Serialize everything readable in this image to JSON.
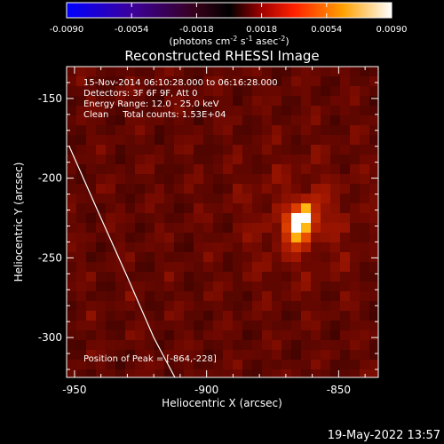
{
  "colorbar": {
    "ticks": [
      "-0.0090",
      "-0.0054",
      "-0.0018",
      "0.0018",
      "0.0054",
      "0.0090"
    ],
    "range": [
      -0.009,
      0.009
    ],
    "units_prefix": "(photons cm",
    "units_exp1": "-2",
    "units_mid": " s",
    "units_exp2": "-1",
    "units_mid2": " asec",
    "units_exp3": "-2",
    "units_suffix": ")"
  },
  "chart_data": {
    "type": "heatmap",
    "title": "Reconstructed RHESSI Image",
    "xlabel": "Heliocentric X (arcsec)",
    "ylabel": "Heliocentric Y (arcsec)",
    "xlim": [
      -953,
      -835
    ],
    "ylim": [
      -325,
      -130
    ],
    "xticks": [
      -950,
      -900,
      -850,
      -800
    ],
    "yticks": [
      -150,
      -200,
      -250,
      -300
    ],
    "peak": {
      "x": -864,
      "y": -228
    },
    "annotations": [
      "15-Nov-2014 06:10:28.000 to 06:16:28.000",
      "Detectors: 3F 6F 9F, Att 0",
      "Energy Range: 12.0 - 25.0 keV",
      "Clean     Total counts: 1.53E+04"
    ],
    "peak_label": "Position of Peak = [-864,-228]",
    "limb_curve": [
      [
        -952,
        -180
      ],
      [
        -940,
        -225
      ],
      [
        -930,
        -262
      ],
      [
        -920,
        -300
      ],
      [
        -912,
        -325
      ]
    ]
  },
  "footer_date": "19-May-2022 13:57"
}
